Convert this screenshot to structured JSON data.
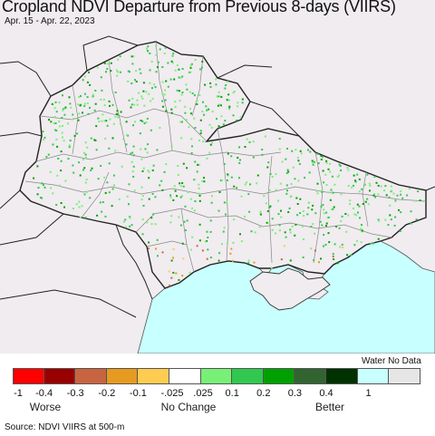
{
  "title": "Cropland NDVI Departure from Previous 8-days (VIIRS)",
  "date_range": "Apr. 15 - Apr. 22, 2023",
  "legend": {
    "extra_label": "Water No Data",
    "colors": [
      "#fe0000",
      "#990000",
      "#c86440",
      "#e69a20",
      "#fecc50",
      "#ffffff",
      "#78f078",
      "#32c850",
      "#00a000",
      "#326432",
      "#003200",
      "#c8ffff",
      "#e6e6e6"
    ],
    "ticks": [
      "-1",
      "-0.4",
      "-0.3",
      "-0.2",
      "-0.1",
      "-.025",
      ".025",
      "0.1",
      "0.2",
      "0.3",
      "0.4",
      "1"
    ],
    "categories": [
      "Worse",
      "No Change",
      "Better"
    ]
  },
  "map": {
    "land_color": "#f0ecef",
    "sea_color": "#c8ffff",
    "border_color": "#333333",
    "oblast_color": "#888888"
  },
  "source": "Source: NDVI VIIRS at 500-m"
}
